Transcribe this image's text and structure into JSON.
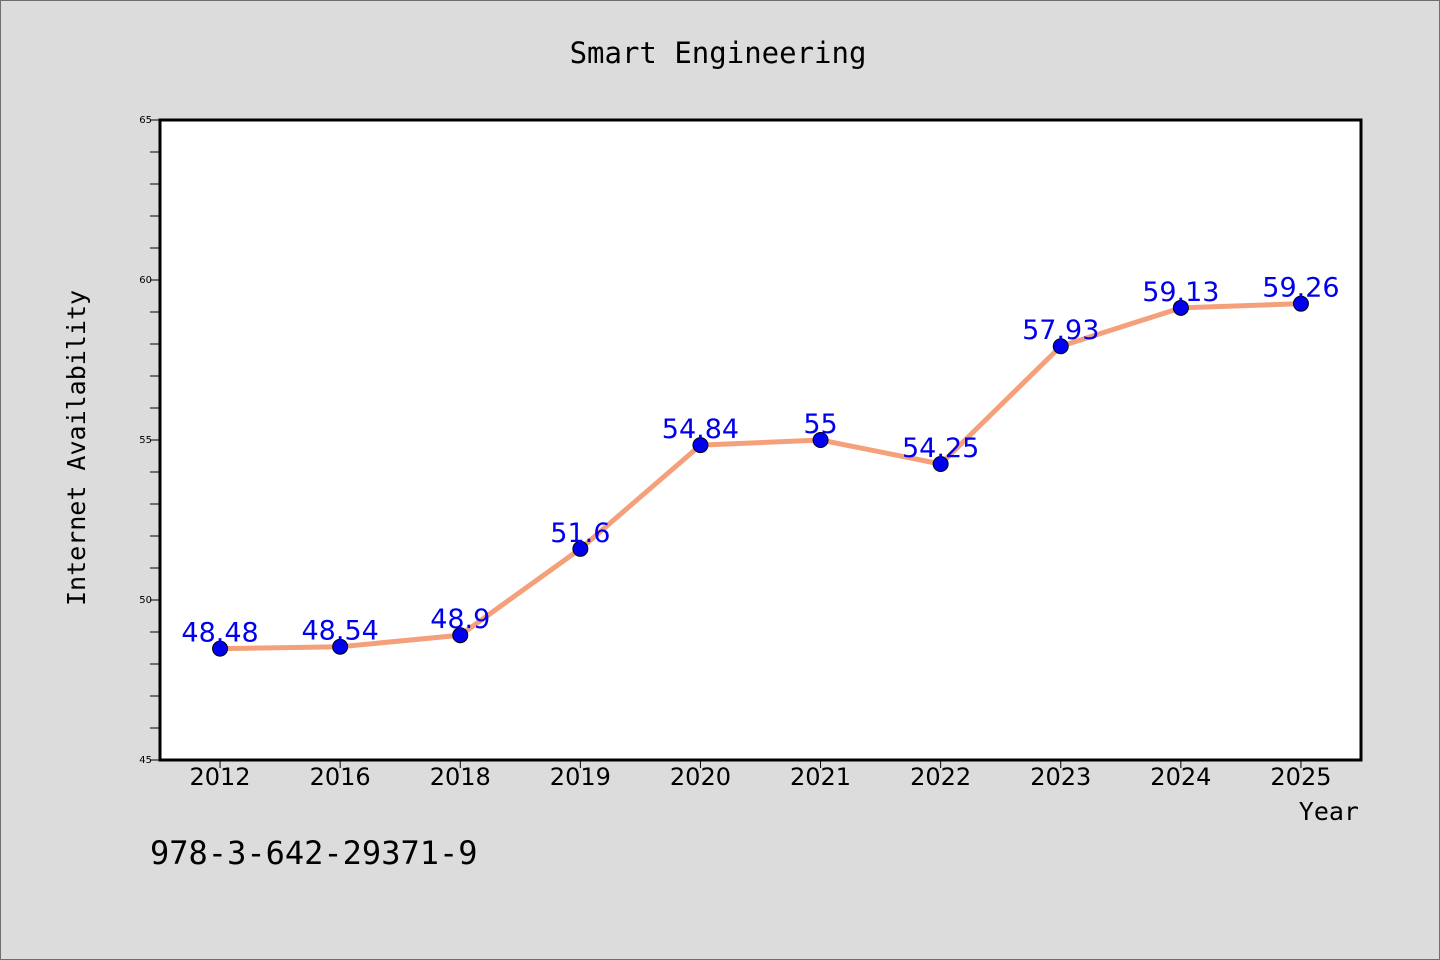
{
  "chart_data": {
    "type": "line",
    "title": "Smart Engineering",
    "xlabel": "Year",
    "ylabel": "Internet Availability",
    "categories": [
      "2012",
      "2016",
      "2018",
      "2019",
      "2020",
      "2021",
      "2022",
      "2023",
      "2024",
      "2025"
    ],
    "series": [
      {
        "values": [
          48.48,
          48.54,
          48.9,
          51.6,
          54.84,
          55,
          54.25,
          57.93,
          59.13,
          59.26
        ],
        "data_labels": [
          "48.48",
          "48.54",
          "48.9",
          "51.6",
          "54.84",
          "55",
          "54.25",
          "57.93",
          "59.13",
          "59.26"
        ],
        "line_color": "#f4a07a",
        "marker_color": "#0000ee",
        "label_color": "#0000ee"
      }
    ],
    "ylim": [
      45,
      65
    ],
    "y_ticks": [
      "45",
      "50",
      "55",
      "60",
      "65"
    ],
    "grid": false,
    "legend": "none"
  },
  "footer_text": "978-3-642-29371-9"
}
